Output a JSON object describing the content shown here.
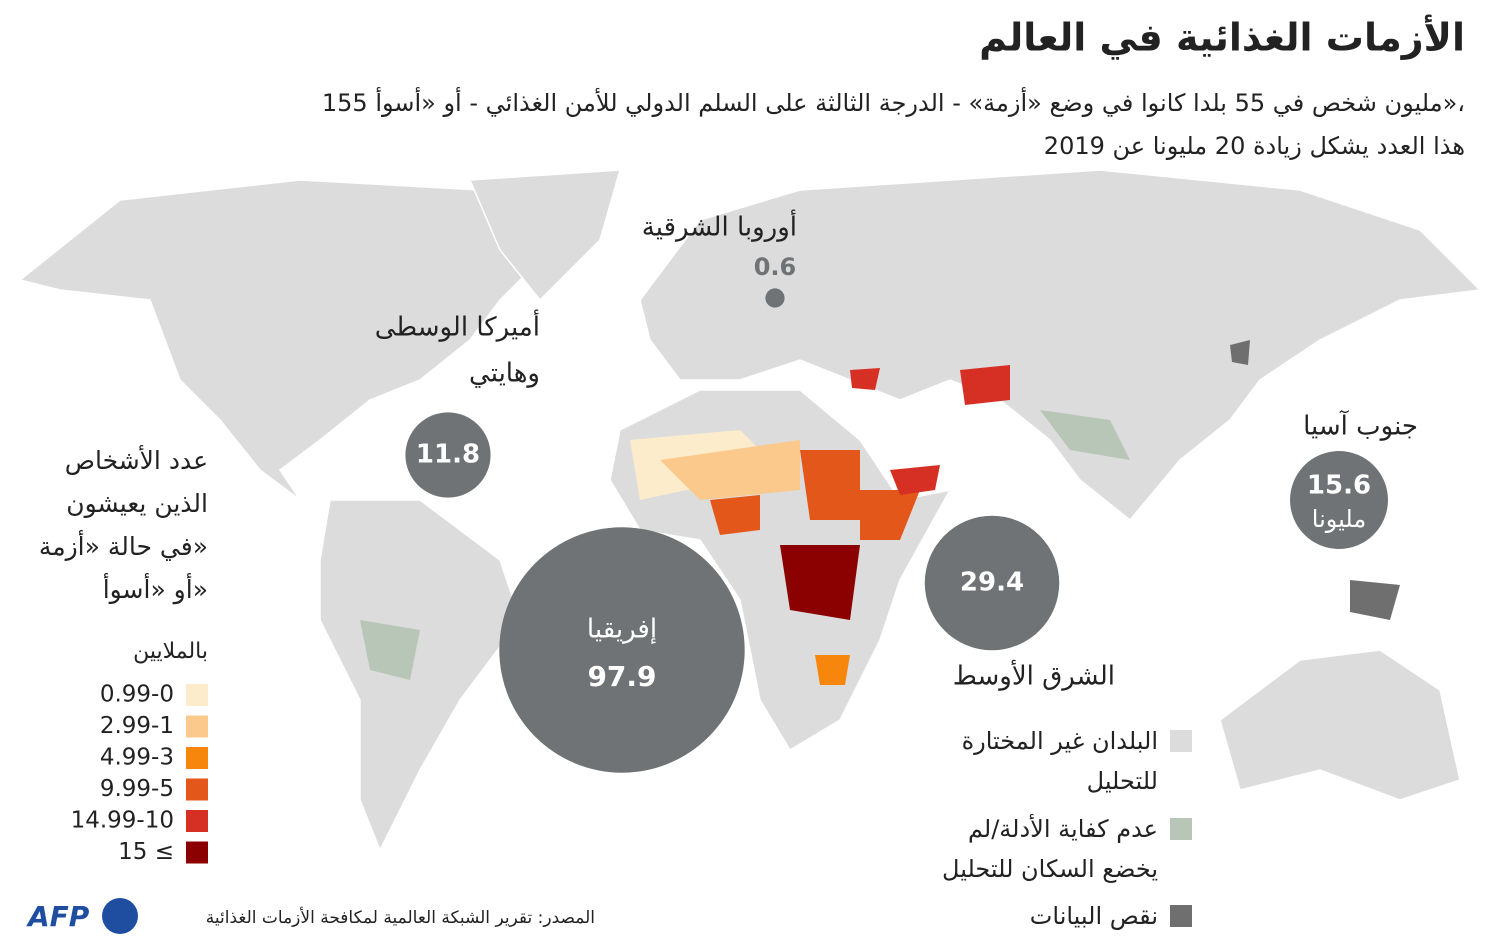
{
  "header": {
    "title": "الأزمات الغذائية في العالم",
    "subtitle": [
      "155 مليون شخص في 55 بلدا كانوا في وضع «أزمة» - الدرجة الثالثة على السلم الدولي للأمن الغذائي - أو «أسوأ»،",
      "هذا العدد يشكل زيادة 20 مليونا عن 2019"
    ]
  },
  "regions": [
    {
      "label": [
        "إفريقيا"
      ],
      "value": 97.9
    },
    {
      "label": [
        "الشرق الأوسط"
      ],
      "value": 29.4
    },
    {
      "label": [
        "جنوب آسيا"
      ],
      "value": 15.6,
      "unit": "مليونا"
    },
    {
      "label": [
        "أميركا الوسطى",
        "وهايتي"
      ],
      "value": 11.8
    },
    {
      "label": [
        "أوروبا الشرقية"
      ],
      "value": 0.6
    }
  ],
  "legend": {
    "title": [
      "عدد الأشخاص",
      "الذين يعيشون",
      "في حالة «أزمة»",
      "أو «أسوأ»"
    ],
    "unit": "بالملايين",
    "items": [
      {
        "label": "0.99-0",
        "color": "#fdeccc"
      },
      {
        "label": "2.99-1",
        "color": "#fbc98b"
      },
      {
        "label": "4.99-3",
        "color": "#f7860d"
      },
      {
        "label": "9.99-5",
        "color": "#e4571a"
      },
      {
        "label": "14.99-10",
        "color": "#d63024"
      },
      {
        "label": "15 ≤",
        "color": "#8b0000"
      }
    ]
  },
  "status_legend": [
    {
      "label": [
        "البلدان غير المختارة",
        "للتحليل"
      ],
      "color": "#dcdcdc"
    },
    {
      "label": [
        "عدم كفاية الأدلة/لم",
        "يخضع السكان للتحليل"
      ],
      "color": "#b8c6b8"
    },
    {
      "label": [
        "نقص البيانات"
      ],
      "color": "#6f6f6f"
    }
  ],
  "source": "المصدر: تقرير الشبكة العالمية لمكافحة الأزمات الغذائية",
  "logo": "AFP"
}
